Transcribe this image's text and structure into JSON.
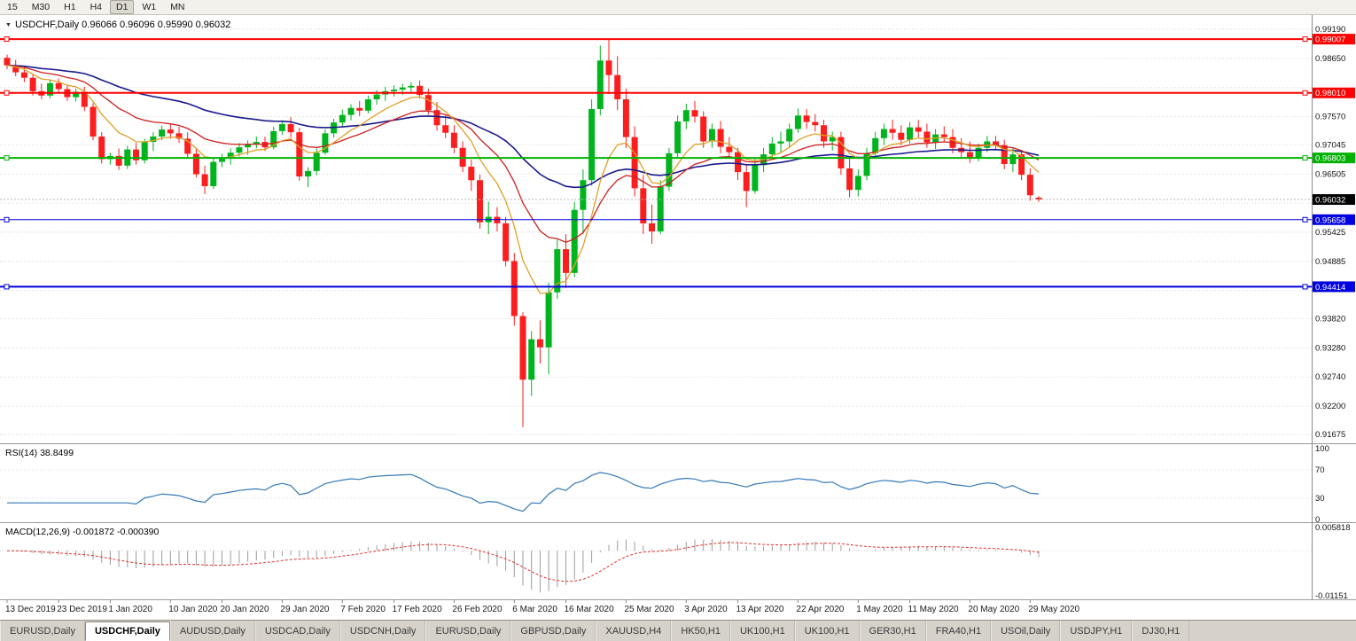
{
  "toolbar": {
    "timeframes": [
      {
        "label": "15",
        "active": false
      },
      {
        "label": "M30",
        "active": false
      },
      {
        "label": "H1",
        "active": false
      },
      {
        "label": "H4",
        "active": false
      },
      {
        "label": "D1",
        "active": true
      },
      {
        "label": "W1",
        "active": false
      },
      {
        "label": "MN",
        "active": false
      }
    ]
  },
  "chart_data": {
    "type": "candlestick",
    "symbol": "USDCHF",
    "timeframe": "Daily",
    "header": {
      "collapse_icon": "▼",
      "title": "USDCHF,Daily",
      "open": "0.96066",
      "high": "0.96096",
      "low": "0.95990",
      "close": "0.96032"
    },
    "price_axis": {
      "top": 0.99453,
      "bottom": 0.9151,
      "tick_labels": [
        "0.99190",
        "0.98650",
        "0.97570",
        "0.97045",
        "0.96505",
        "0.95425",
        "0.94885",
        "0.93820",
        "0.93280",
        "0.92740",
        "0.92200",
        "0.91675"
      ],
      "grid_extra": [
        0.9811,
        0.95965,
        0.94345
      ]
    },
    "colors": {
      "up": "#00b41e",
      "down": "#fa1e1e",
      "grid": "#d6d6d6",
      "axis_line": "#8c8c8c",
      "ma_fast": "#dfa028",
      "ma_mid": "#cc2020",
      "ma_slow": "#1a1a8c",
      "rsi": "#3579b8",
      "macd_hist": "#9c9c9c",
      "macd_signal": "#e03030",
      "bid_line": "#b4b4b4",
      "hline_red": "#ff0000",
      "hline_green": "#00b200",
      "hline_blue": "#0000e0"
    },
    "hlines": [
      {
        "price": 0.99007,
        "label": "0.99007",
        "color": "#ff0000",
        "width": 2
      },
      {
        "price": 0.9801,
        "label": "0.98010",
        "color": "#ff0000",
        "width": 2
      },
      {
        "price": 0.96803,
        "label": "0.96803",
        "color": "#00b200",
        "width": 2
      },
      {
        "price": 0.95658,
        "label": "0.95658",
        "color": "#0000e0",
        "width": 1
      },
      {
        "price": 0.94414,
        "label": "0.94414",
        "color": "#0000e0",
        "width": 2
      }
    ],
    "current_price": {
      "value": 0.96032,
      "label": "0.96032"
    },
    "moving_averages": [
      {
        "name": "fast",
        "period": 8
      },
      {
        "name": "mid",
        "period": 18
      },
      {
        "name": "slow",
        "period": 45
      }
    ],
    "candles": [
      [
        0.9866,
        0.9872,
        0.9845,
        0.9852
      ],
      [
        0.9852,
        0.9862,
        0.9832,
        0.9839
      ],
      [
        0.9839,
        0.9851,
        0.9821,
        0.9829
      ],
      [
        0.9829,
        0.9836,
        0.9796,
        0.9804
      ],
      [
        0.9804,
        0.9818,
        0.9789,
        0.9796
      ],
      [
        0.9796,
        0.9826,
        0.9791,
        0.9819
      ],
      [
        0.9819,
        0.9828,
        0.9801,
        0.9808
      ],
      [
        0.9808,
        0.9816,
        0.9786,
        0.9793
      ],
      [
        0.9793,
        0.9809,
        0.9785,
        0.9803
      ],
      [
        0.9803,
        0.9812,
        0.9767,
        0.9775
      ],
      [
        0.9775,
        0.9782,
        0.9713,
        0.972
      ],
      [
        0.972,
        0.9728,
        0.967,
        0.9678
      ],
      [
        0.9678,
        0.969,
        0.9668,
        0.9684
      ],
      [
        0.9684,
        0.9698,
        0.9658,
        0.9666
      ],
      [
        0.9666,
        0.9703,
        0.966,
        0.9696
      ],
      [
        0.9696,
        0.9708,
        0.9668,
        0.9676
      ],
      [
        0.9676,
        0.9716,
        0.967,
        0.971
      ],
      [
        0.971,
        0.9728,
        0.9693,
        0.972
      ],
      [
        0.972,
        0.974,
        0.9713,
        0.9733
      ],
      [
        0.9733,
        0.9743,
        0.9716,
        0.9726
      ],
      [
        0.9726,
        0.9738,
        0.9708,
        0.9716
      ],
      [
        0.9716,
        0.9728,
        0.968,
        0.9688
      ],
      [
        0.9688,
        0.9698,
        0.9644,
        0.965
      ],
      [
        0.965,
        0.9666,
        0.9613,
        0.9628
      ],
      [
        0.9628,
        0.968,
        0.9623,
        0.9673
      ],
      [
        0.9673,
        0.9688,
        0.9663,
        0.968
      ],
      [
        0.968,
        0.9698,
        0.9668,
        0.969
      ],
      [
        0.969,
        0.9708,
        0.9683,
        0.97
      ],
      [
        0.97,
        0.9713,
        0.9686,
        0.9706
      ],
      [
        0.9706,
        0.972,
        0.9698,
        0.971
      ],
      [
        0.971,
        0.972,
        0.9693,
        0.97
      ],
      [
        0.97,
        0.9738,
        0.9696,
        0.973
      ],
      [
        0.973,
        0.975,
        0.9723,
        0.9743
      ],
      [
        0.9743,
        0.9756,
        0.9718,
        0.9728
      ],
      [
        0.9728,
        0.9736,
        0.9638,
        0.9646
      ],
      [
        0.9646,
        0.9663,
        0.9626,
        0.9656
      ],
      [
        0.9656,
        0.9698,
        0.9648,
        0.969
      ],
      [
        0.969,
        0.9733,
        0.9686,
        0.9726
      ],
      [
        0.9726,
        0.9753,
        0.9718,
        0.9746
      ],
      [
        0.9746,
        0.977,
        0.9738,
        0.976
      ],
      [
        0.976,
        0.978,
        0.975,
        0.9773
      ],
      [
        0.9773,
        0.9786,
        0.9758,
        0.9768
      ],
      [
        0.9768,
        0.9796,
        0.9763,
        0.9789
      ],
      [
        0.9789,
        0.9806,
        0.9779,
        0.9798
      ],
      [
        0.9798,
        0.9812,
        0.9786,
        0.9804
      ],
      [
        0.9804,
        0.9815,
        0.9794,
        0.9807
      ],
      [
        0.9807,
        0.9818,
        0.9797,
        0.9811
      ],
      [
        0.9811,
        0.9821,
        0.9801,
        0.9814
      ],
      [
        0.9814,
        0.9824,
        0.9791,
        0.9797
      ],
      [
        0.9797,
        0.9809,
        0.9761,
        0.9769
      ],
      [
        0.9769,
        0.9784,
        0.9731,
        0.9741
      ],
      [
        0.9741,
        0.9759,
        0.9717,
        0.9727
      ],
      [
        0.9727,
        0.9741,
        0.9689,
        0.9699
      ],
      [
        0.9699,
        0.9711,
        0.9654,
        0.9664
      ],
      [
        0.9664,
        0.9677,
        0.9619,
        0.9639
      ],
      [
        0.9639,
        0.9649,
        0.9549,
        0.9561
      ],
      [
        0.9561,
        0.9599,
        0.9539,
        0.9571
      ],
      [
        0.9571,
        0.9589,
        0.9544,
        0.9559
      ],
      [
        0.9559,
        0.9571,
        0.9479,
        0.9489
      ],
      [
        0.9489,
        0.9504,
        0.9369,
        0.9387
      ],
      [
        0.9387,
        0.9394,
        0.9181,
        0.9269
      ],
      [
        0.9269,
        0.9359,
        0.9239,
        0.9344
      ],
      [
        0.9344,
        0.9379,
        0.9299,
        0.9329
      ],
      [
        0.9329,
        0.9449,
        0.9279,
        0.9431
      ],
      [
        0.9431,
        0.9529,
        0.9419,
        0.9511
      ],
      [
        0.9511,
        0.9539,
        0.9439,
        0.9467
      ],
      [
        0.9467,
        0.9599,
        0.9459,
        0.9584
      ],
      [
        0.9584,
        0.9659,
        0.9539,
        0.9639
      ],
      [
        0.9639,
        0.9789,
        0.9629,
        0.9771
      ],
      [
        0.9771,
        0.9889,
        0.9759,
        0.9861
      ],
      [
        0.9861,
        0.9901,
        0.9799,
        0.9834
      ],
      [
        0.9834,
        0.9869,
        0.9769,
        0.9789
      ],
      [
        0.9789,
        0.9809,
        0.9699,
        0.9719
      ],
      [
        0.9719,
        0.9739,
        0.9609,
        0.9624
      ],
      [
        0.9624,
        0.9649,
        0.9539,
        0.9559
      ],
      [
        0.9559,
        0.9594,
        0.9521,
        0.9544
      ],
      [
        0.9544,
        0.9639,
        0.9539,
        0.9627
      ],
      [
        0.9627,
        0.9699,
        0.9619,
        0.9689
      ],
      [
        0.9689,
        0.9759,
        0.9679,
        0.9748
      ],
      [
        0.9748,
        0.9781,
        0.9734,
        0.9769
      ],
      [
        0.9769,
        0.9786,
        0.9746,
        0.9757
      ],
      [
        0.9757,
        0.9767,
        0.9699,
        0.9711
      ],
      [
        0.9711,
        0.9744,
        0.9699,
        0.9734
      ],
      [
        0.9734,
        0.9749,
        0.9689,
        0.9701
      ],
      [
        0.9701,
        0.9719,
        0.9679,
        0.9691
      ],
      [
        0.9691,
        0.9699,
        0.9639,
        0.9654
      ],
      [
        0.9654,
        0.9667,
        0.9589,
        0.9619
      ],
      [
        0.9619,
        0.9679,
        0.9614,
        0.9667
      ],
      [
        0.9667,
        0.9699,
        0.9654,
        0.9687
      ],
      [
        0.9687,
        0.9719,
        0.9679,
        0.9707
      ],
      [
        0.9707,
        0.9729,
        0.9689,
        0.9711
      ],
      [
        0.9711,
        0.9744,
        0.9699,
        0.9734
      ],
      [
        0.9734,
        0.9772,
        0.9727,
        0.9759
      ],
      [
        0.9759,
        0.9771,
        0.9734,
        0.9747
      ],
      [
        0.9747,
        0.9762,
        0.9729,
        0.9741
      ],
      [
        0.9741,
        0.9751,
        0.9699,
        0.9711
      ],
      [
        0.9711,
        0.9729,
        0.9694,
        0.9719
      ],
      [
        0.9719,
        0.9729,
        0.9649,
        0.9661
      ],
      [
        0.9661,
        0.9679,
        0.9607,
        0.9621
      ],
      [
        0.9621,
        0.9659,
        0.9609,
        0.9647
      ],
      [
        0.9647,
        0.9699,
        0.9639,
        0.9689
      ],
      [
        0.9689,
        0.9729,
        0.9679,
        0.9717
      ],
      [
        0.9717,
        0.9744,
        0.9704,
        0.9734
      ],
      [
        0.9734,
        0.9751,
        0.9714,
        0.9727
      ],
      [
        0.9727,
        0.9741,
        0.9704,
        0.9714
      ],
      [
        0.9714,
        0.9747,
        0.9707,
        0.9737
      ],
      [
        0.9737,
        0.9751,
        0.9717,
        0.9729
      ],
      [
        0.9729,
        0.9744,
        0.9699,
        0.9709
      ],
      [
        0.9709,
        0.9734,
        0.9697,
        0.9724
      ],
      [
        0.9724,
        0.9739,
        0.9709,
        0.9719
      ],
      [
        0.9719,
        0.9734,
        0.9689,
        0.9699
      ],
      [
        0.9699,
        0.9717,
        0.9679,
        0.9691
      ],
      [
        0.9691,
        0.9711,
        0.9671,
        0.9681
      ],
      [
        0.9681,
        0.9707,
        0.9674,
        0.9699
      ],
      [
        0.9699,
        0.9721,
        0.9691,
        0.9711
      ],
      [
        0.9711,
        0.9721,
        0.9697,
        0.9704
      ],
      [
        0.9704,
        0.9714,
        0.9659,
        0.9669
      ],
      [
        0.9669,
        0.9699,
        0.9654,
        0.9687
      ],
      [
        0.9687,
        0.9694,
        0.9639,
        0.9649
      ],
      [
        0.9649,
        0.9661,
        0.9601,
        0.9611
      ],
      [
        0.96066,
        0.96096,
        0.9599,
        0.96032
      ]
    ],
    "date_labels": [
      [
        0,
        "13 Dec 2019"
      ],
      [
        6,
        "23 Dec 2019"
      ],
      [
        12,
        "1 Jan 2020"
      ],
      [
        19,
        "10 Jan 2020"
      ],
      [
        25,
        "20 Jan 2020"
      ],
      [
        32,
        "29 Jan 2020"
      ],
      [
        39,
        "7 Feb 2020"
      ],
      [
        45,
        "17 Feb 2020"
      ],
      [
        52,
        "26 Feb 2020"
      ],
      [
        59,
        "6 Mar 2020"
      ],
      [
        65,
        "16 Mar 2020"
      ],
      [
        72,
        "25 Mar 2020"
      ],
      [
        79,
        "3 Apr 2020"
      ],
      [
        85,
        "13 Apr 2020"
      ],
      [
        92,
        "22 Apr 2020"
      ],
      [
        99,
        "1 May 2020"
      ],
      [
        105,
        "11 May 2020"
      ],
      [
        112,
        "20 May 2020"
      ],
      [
        119,
        "29 May 2020"
      ]
    ],
    "rsi": {
      "name": "RSI(14)",
      "value": "38.8499",
      "period": 14,
      "levels": [
        70,
        30
      ],
      "axis_ticks": [
        [
          100,
          "100"
        ],
        [
          70,
          "70"
        ],
        [
          30,
          "30"
        ],
        [
          0,
          "0"
        ]
      ]
    },
    "macd": {
      "name": "MACD(12,26,9)",
      "values": "-0.001872 -0.000390",
      "fast": 12,
      "slow": 26,
      "signal_period": 9,
      "axis_max": 0.005818,
      "axis_min": -0.01151,
      "axis_ticks": [
        [
          0.005818,
          "0.005818"
        ],
        [
          -0.01151,
          "-0.01151"
        ]
      ]
    }
  },
  "tabbar": {
    "tabs": [
      {
        "label": "EURUSD,Daily",
        "active": false
      },
      {
        "label": "USDCHF,Daily",
        "active": true
      },
      {
        "label": "AUDUSD,Daily",
        "active": false
      },
      {
        "label": "USDCAD,Daily",
        "active": false
      },
      {
        "label": "USDCNH,Daily",
        "active": false
      },
      {
        "label": "EURUSD,Daily",
        "active": false
      },
      {
        "label": "GBPUSD,Daily",
        "active": false
      },
      {
        "label": "XAUUSD,H4",
        "active": false
      },
      {
        "label": "HK50,H1",
        "active": false
      },
      {
        "label": "UK100,H1",
        "active": false
      },
      {
        "label": "UK100,H1",
        "active": false
      },
      {
        "label": "GER30,H1",
        "active": false
      },
      {
        "label": "FRA40,H1",
        "active": false
      },
      {
        "label": "USOil,Daily",
        "active": false
      },
      {
        "label": "USDJPY,H1",
        "active": false
      },
      {
        "label": "DJ30,H1",
        "active": false
      }
    ]
  }
}
